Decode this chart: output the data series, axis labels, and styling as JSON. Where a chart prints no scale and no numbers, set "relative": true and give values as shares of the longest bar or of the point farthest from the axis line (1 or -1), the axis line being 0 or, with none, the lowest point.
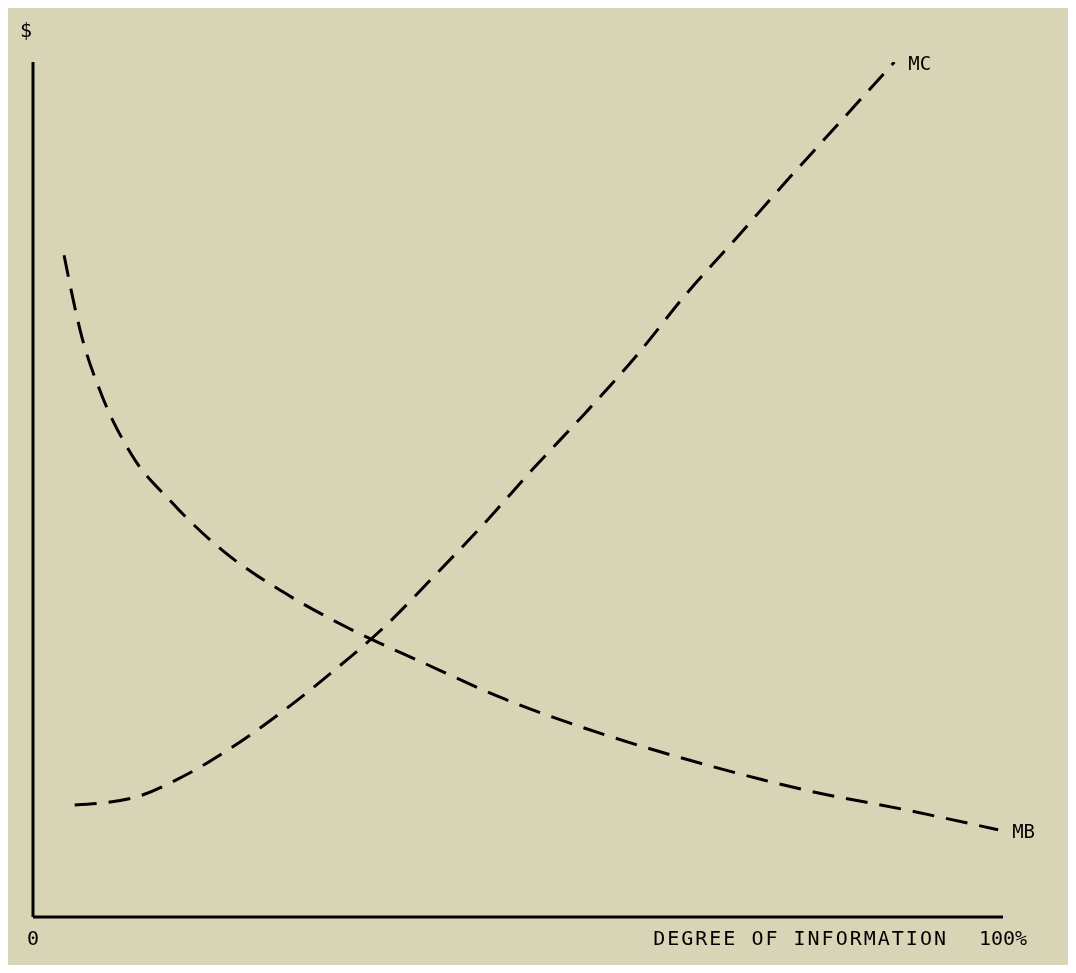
{
  "chart_data": {
    "type": "line",
    "xlabel": "DEGREE OF INFORMATION",
    "ylabel": "$",
    "relative": true,
    "xlim": [
      0,
      100
    ],
    "xticks": [
      {
        "value": 0,
        "label": "0"
      },
      {
        "value": 100,
        "label": "100%"
      }
    ],
    "line_style": "dashed",
    "marker": "none",
    "grid": false,
    "legend": false,
    "series": [
      {
        "name": "MC",
        "color": "#000000",
        "x": [
          4.3,
          10.2,
          15.4,
          20.6,
          25.8,
          30.9,
          36.1,
          41.3,
          46.5,
          51.7,
          56.9,
          62.1,
          67.3,
          72.5,
          77.7,
          82.9,
          88.8
        ],
        "values": [
          0.131,
          0.139,
          0.164,
          0.199,
          0.241,
          0.287,
          0.338,
          0.398,
          0.46,
          0.526,
          0.589,
          0.655,
          0.728,
          0.794,
          0.861,
          0.926,
          1
        ]
      },
      {
        "name": "MB",
        "color": "#000000",
        "x": [
          3.2,
          5.0,
          7.1,
          10.2,
          14.3,
          19.5,
          25.8,
          32.5,
          40.3,
          48.6,
          59.0,
          69.4,
          79.8,
          90.1,
          99.5
        ],
        "values": [
          0.774,
          0.68,
          0.61,
          0.54,
          0.485,
          0.429,
          0.38,
          0.338,
          0.297,
          0.255,
          0.213,
          0.178,
          0.148,
          0.125,
          0.102
        ]
      }
    ]
  }
}
